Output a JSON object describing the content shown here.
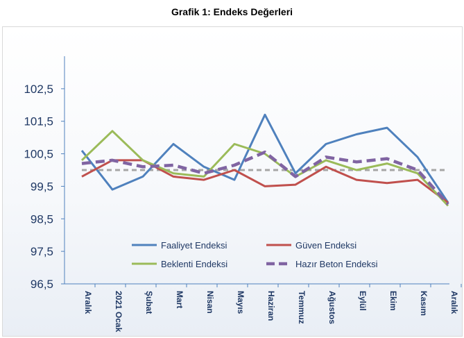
{
  "title": "Grafik 1: Endeks Değerleri",
  "chart_data": {
    "type": "line",
    "title": "Grafik 1: Endeks Değerleri",
    "xlabel": "",
    "ylabel": "",
    "ylim": [
      96.5,
      103.5
    ],
    "yticks": [
      "96,5",
      "97,5",
      "98,5",
      "99,5",
      "100,5",
      "101,5",
      "102,5"
    ],
    "ytick_values": [
      96.5,
      97.5,
      98.5,
      99.5,
      100.5,
      101.5,
      102.5
    ],
    "categories": [
      "Aralık",
      "2021 Ocak",
      "Şubat",
      "Mart",
      "Nisan",
      "Mayıs",
      "Haziran",
      "Temmuz",
      "Ağustos",
      "Eylül",
      "Ekim",
      "Kasım",
      "Aralık"
    ],
    "grid": false,
    "legend_position": "bottom-center inside",
    "reference_line": {
      "value": 100,
      "color": "#a6a6a6",
      "style": "dashed"
    },
    "series": [
      {
        "name": "Faaliyet Endeksi",
        "color": "#4f81bd",
        "style": "solid",
        "values": [
          100.6,
          99.4,
          99.8,
          100.8,
          100.1,
          99.7,
          101.7,
          99.9,
          100.8,
          101.1,
          101.3,
          100.4,
          99.0
        ]
      },
      {
        "name": "Güven Endeksi",
        "color": "#c0504d",
        "style": "solid",
        "values": [
          99.8,
          100.3,
          100.3,
          99.8,
          99.7,
          100.0,
          99.5,
          99.55,
          100.1,
          99.7,
          99.6,
          99.7,
          99.0
        ]
      },
      {
        "name": "Beklenti Endeksi",
        "color": "#9bbb59",
        "style": "solid",
        "values": [
          100.3,
          101.2,
          100.3,
          99.9,
          99.8,
          100.8,
          100.5,
          99.8,
          100.3,
          100.0,
          100.2,
          99.9,
          98.9
        ]
      },
      {
        "name": "Hazır Beton Endeksi",
        "color": "#8064a2",
        "style": "dashed",
        "values": [
          100.2,
          100.3,
          100.1,
          100.15,
          99.9,
          100.15,
          100.55,
          99.8,
          100.4,
          100.25,
          100.35,
          100.0,
          98.95
        ]
      }
    ]
  }
}
